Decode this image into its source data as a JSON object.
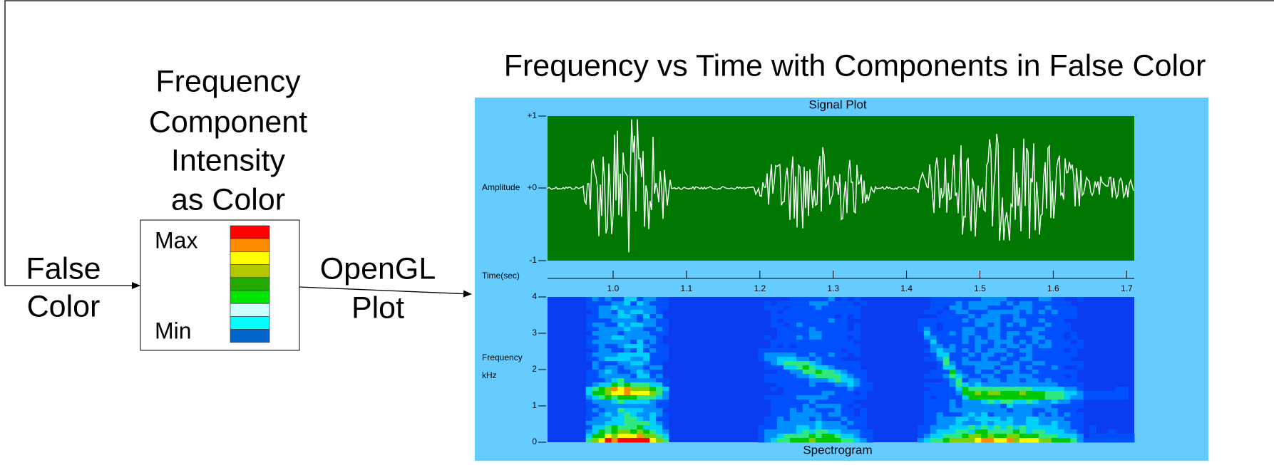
{
  "title": "Frequency vs Time with Components in False Color",
  "input": {
    "lines": [
      "False",
      "Color"
    ]
  },
  "legend": {
    "title_lines": [
      "Frequency",
      "Component",
      "Intensity",
      "as Color"
    ],
    "max": "Max",
    "min": "Min"
  },
  "arrow_label": {
    "lines": [
      "OpenGL",
      "Plot"
    ]
  },
  "plot": {
    "signal_title": "Signal Plot",
    "amplitude_label": "Amplitude",
    "amplitude_ticks": [
      "+1",
      "+0",
      "-1"
    ],
    "time_label": "Time(sec)",
    "time_ticks": [
      "1.0",
      "1.1",
      "1.2",
      "1.3",
      "1.4",
      "1.5",
      "1.6",
      "1.7"
    ],
    "frequency_label_lines": [
      "Frequency",
      "kHz"
    ],
    "frequency_ticks": [
      "4",
      "3",
      "2",
      "1",
      "0"
    ],
    "spectrogram_title": "Spectrogram"
  }
}
